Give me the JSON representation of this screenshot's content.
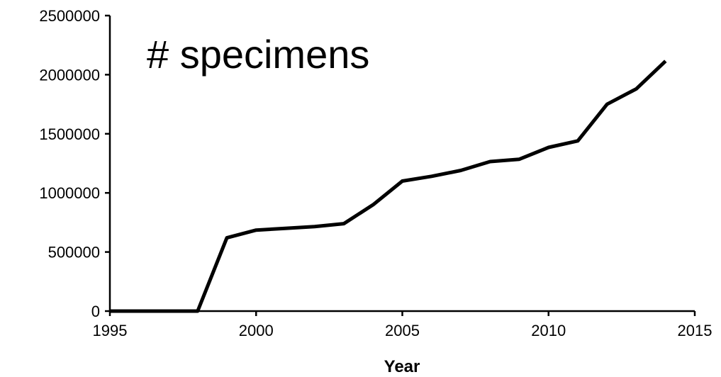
{
  "chart_data": {
    "type": "line",
    "annotation": "# specimens",
    "xlabel": "Year",
    "ylabel": "",
    "xlim": [
      1995,
      2015
    ],
    "ylim": [
      0,
      2500000
    ],
    "x_ticks": [
      1995,
      2000,
      2005,
      2010,
      2015
    ],
    "y_ticks": [
      0,
      500000,
      1000000,
      1500000,
      2000000,
      2500000
    ],
    "x_tick_labels": [
      "1995",
      "2000",
      "2005",
      "2010",
      "2015"
    ],
    "y_tick_labels": [
      "0",
      "500000",
      "1000000",
      "1500000",
      "2000000",
      "2500000"
    ],
    "grid": false,
    "legend": "none",
    "line_color": "#000000",
    "series": [
      {
        "x": [
          1995,
          1996,
          1997,
          1998,
          1999,
          2000,
          2001,
          2002,
          2003,
          2004,
          2005,
          2006,
          2007,
          2008,
          2009,
          2010,
          2011,
          2012,
          2013,
          2014
        ],
        "values": [
          0,
          0,
          0,
          0,
          620000,
          685000,
          700000,
          715000,
          740000,
          900000,
          1100000,
          1140000,
          1190000,
          1265000,
          1285000,
          1385000,
          1440000,
          1750000,
          1880000,
          2115000
        ]
      }
    ]
  }
}
